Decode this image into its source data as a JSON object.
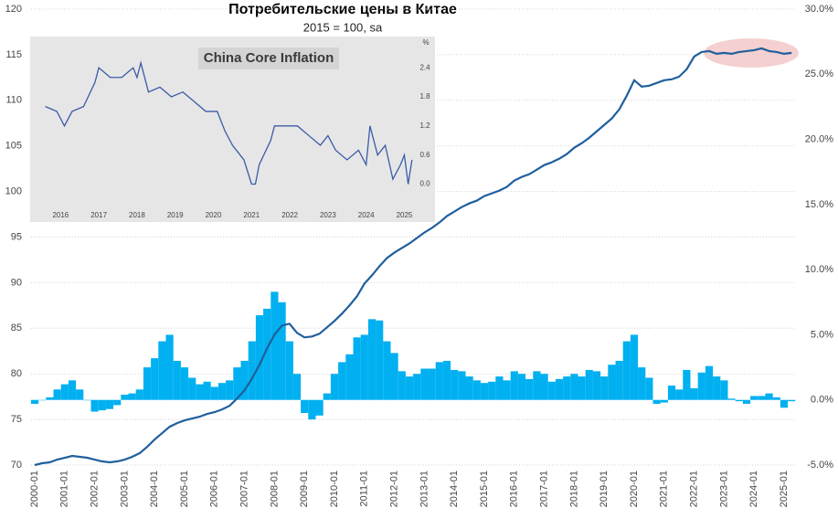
{
  "chart_data": [
    {
      "type": "line",
      "title": "Потребительские цены в Китае",
      "subtitle": "2015 = 100, sa",
      "categories": [
        "2000-01",
        null,
        null,
        null,
        "2001-01",
        null,
        null,
        null,
        "2002-01",
        null,
        null,
        null,
        "2003-01",
        null,
        null,
        null,
        "2004-01",
        null,
        null,
        null,
        "2005-01",
        null,
        null,
        null,
        "2006-01",
        null,
        null,
        null,
        "2007-01",
        null,
        null,
        null,
        "2008-01",
        null,
        null,
        null,
        "2009-01",
        null,
        null,
        null,
        "2010-01",
        null,
        null,
        null,
        "2011-01",
        null,
        null,
        null,
        "2012-01",
        null,
        null,
        null,
        "2013-01",
        null,
        null,
        null,
        "2014-01",
        null,
        null,
        null,
        "2015-01",
        null,
        null,
        null,
        "2016-01",
        null,
        null,
        null,
        "2017-01",
        null,
        null,
        null,
        "2018-01",
        null,
        null,
        null,
        "2019-01",
        null,
        null,
        null,
        "2020-01",
        null,
        null,
        null,
        "2021-01",
        null,
        null,
        null,
        "2022-01",
        null,
        null,
        null,
        "2023-01",
        null,
        null,
        null,
        "2024-01",
        null,
        null,
        null,
        "2025-01",
        null
      ],
      "series": [
        {
          "type": "line",
          "color": "#1f5f9e",
          "axis": "y",
          "values": [
            70.0,
            70.2,
            70.3,
            70.6,
            70.8,
            71.0,
            70.9,
            70.8,
            70.6,
            70.4,
            70.3,
            70.4,
            70.6,
            70.9,
            71.3,
            72.0,
            72.8,
            73.5,
            74.2,
            74.6,
            74.9,
            75.1,
            75.3,
            75.6,
            75.8,
            76.1,
            76.5,
            77.3,
            78.2,
            79.5,
            81.0,
            82.8,
            84.3,
            85.3,
            85.5,
            84.5,
            84.0,
            84.1,
            84.4,
            85.1,
            85.8,
            86.6,
            87.5,
            88.5,
            89.9,
            90.8,
            91.8,
            92.7,
            93.3,
            93.8,
            94.3,
            94.9,
            95.5,
            96.0,
            96.6,
            97.3,
            97.8,
            98.3,
            98.7,
            99.0,
            99.5,
            99.8,
            100.1,
            100.5,
            101.2,
            101.6,
            101.9,
            102.4,
            102.9,
            103.2,
            103.6,
            104.1,
            104.8,
            105.3,
            105.9,
            106.6,
            107.3,
            108.0,
            109.0,
            110.5,
            112.2,
            111.5,
            111.6,
            111.9,
            112.2,
            112.3,
            112.6,
            113.4,
            114.8,
            115.3,
            115.4,
            115.1,
            115.2,
            115.1,
            115.3,
            115.4,
            115.5,
            115.7,
            115.4,
            115.3,
            115.1,
            115.2
          ]
        },
        {
          "type": "bar",
          "color": "#00b0f0",
          "axis": "y2",
          "values": [
            -0.3,
            0.0,
            0.2,
            0.8,
            1.2,
            1.5,
            0.8,
            0.0,
            -0.9,
            -0.8,
            -0.7,
            -0.4,
            0.4,
            0.5,
            0.8,
            2.5,
            3.2,
            4.5,
            5.0,
            3.0,
            2.5,
            1.7,
            1.2,
            1.4,
            1.0,
            1.3,
            1.5,
            2.5,
            3.0,
            4.5,
            6.5,
            7.0,
            8.3,
            7.5,
            4.5,
            2.0,
            -1.0,
            -1.5,
            -1.2,
            0.5,
            2.0,
            2.9,
            3.5,
            4.8,
            5.0,
            6.2,
            6.1,
            4.5,
            3.6,
            2.2,
            1.8,
            2.0,
            2.4,
            2.4,
            2.9,
            3.0,
            2.3,
            2.2,
            1.8,
            1.5,
            1.3,
            1.4,
            1.8,
            1.5,
            2.2,
            2.0,
            1.6,
            2.2,
            2.0,
            1.4,
            1.6,
            1.8,
            2.0,
            1.8,
            2.3,
            2.2,
            1.8,
            2.7,
            3.0,
            4.5,
            5.0,
            2.5,
            1.7,
            -0.3,
            -0.2,
            1.1,
            0.8,
            2.3,
            0.9,
            2.1,
            2.6,
            1.8,
            1.5,
            0.1,
            -0.1,
            -0.3,
            0.3,
            0.3,
            0.5,
            0.2,
            -0.6,
            -0.1
          ]
        }
      ],
      "ylim": [
        70,
        120
      ],
      "yticks": [
        70,
        75,
        80,
        85,
        90,
        95,
        100,
        105,
        110,
        115,
        120
      ],
      "y2lim": [
        -5,
        30
      ],
      "y2ticks": [
        {
          "value": 30,
          "label": "30.0%"
        },
        {
          "value": 25,
          "label": "25.0%"
        },
        {
          "value": 20,
          "label": "20.0%"
        },
        {
          "value": 15,
          "label": "15.0%"
        },
        {
          "value": 10,
          "label": "10.0%"
        },
        {
          "value": 5,
          "label": "5.0%"
        },
        {
          "value": 0,
          "label": "0.0%"
        },
        {
          "value": -5,
          "label": "-5.0%"
        }
      ],
      "grid": true
    },
    {
      "type": "line",
      "title": "China Core Inflation",
      "unit": "%",
      "color": "#3a5ba8",
      "x": [
        2015.6,
        2015.9,
        2016.1,
        2016.3,
        2016.6,
        2016.9,
        2017.0,
        2017.3,
        2017.6,
        2017.9,
        2018.0,
        2018.1,
        2018.3,
        2018.6,
        2018.9,
        2019.2,
        2019.5,
        2019.8,
        2020.1,
        2020.3,
        2020.5,
        2020.8,
        2021.0,
        2021.1,
        2021.2,
        2021.5,
        2021.6,
        2021.9,
        2022.2,
        2022.5,
        2022.8,
        2023.0,
        2023.2,
        2023.5,
        2023.8,
        2024.0,
        2024.1,
        2024.3,
        2024.5,
        2024.7,
        2024.9,
        2025.0,
        2025.1,
        2025.2
      ],
      "values": [
        1.6,
        1.5,
        1.2,
        1.5,
        1.6,
        2.1,
        2.4,
        2.2,
        2.2,
        2.4,
        2.2,
        2.5,
        1.9,
        2.0,
        1.8,
        1.9,
        1.7,
        1.5,
        1.5,
        1.1,
        0.8,
        0.5,
        0.0,
        0.0,
        0.4,
        0.9,
        1.2,
        1.2,
        1.2,
        1.0,
        0.8,
        1.0,
        0.7,
        0.5,
        0.7,
        0.4,
        1.2,
        0.6,
        0.8,
        0.1,
        0.4,
        0.6,
        0.0,
        0.5
      ],
      "xlim": [
        2015.25,
        2025.3
      ],
      "xticks": [
        2016,
        2017,
        2018,
        2019,
        2020,
        2021,
        2022,
        2023,
        2024,
        2025
      ],
      "ylim": [
        -0.5,
        2.95
      ],
      "yticks": [
        {
          "value": 0,
          "label": "0.0"
        },
        {
          "value": 0.6,
          "label": "0.6"
        },
        {
          "value": 1.2,
          "label": "1.2"
        },
        {
          "value": 1.8,
          "label": "1.8"
        },
        {
          "value": 2.4,
          "label": "2.4"
        }
      ]
    }
  ]
}
